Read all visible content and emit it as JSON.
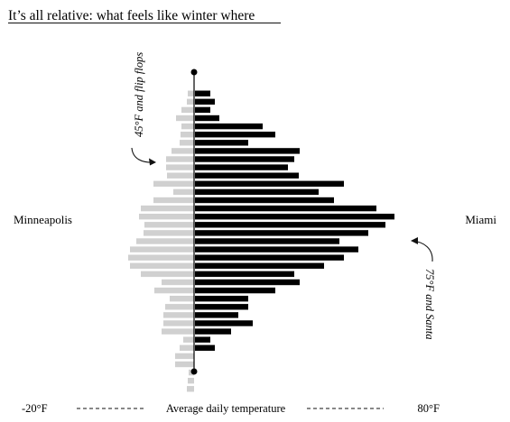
{
  "chart_data": {
    "type": "bar",
    "title": "It’s all relative: what feels like winter where",
    "series": [
      {
        "name": "Minneapolis",
        "color": "#d0d0d0",
        "values": [
          7,
          8,
          14,
          20,
          14,
          15,
          16,
          25,
          31,
          31,
          30,
          45,
          23,
          45,
          59,
          61,
          55,
          56,
          64,
          71,
          73,
          71,
          59,
          36,
          44,
          27,
          32,
          34,
          34,
          36,
          12,
          16,
          21,
          21,
          6,
          7,
          8
        ]
      },
      {
        "name": "Miami",
        "color": "#000000",
        "values": [
          17,
          22,
          17,
          27,
          75,
          89,
          59,
          116,
          110,
          103,
          115,
          165,
          137,
          154,
          201,
          221,
          211,
          192,
          160,
          181,
          165,
          143,
          110,
          116,
          89,
          59,
          59,
          48,
          64,
          40,
          17,
          22
        ]
      }
    ],
    "axis": {
      "left_label": "-20°F",
      "center_label": "Average daily temperature",
      "right_label": "80°F"
    },
    "annotations": {
      "top": "45°F and flip flops",
      "bottom": "75°F and Santa"
    }
  }
}
